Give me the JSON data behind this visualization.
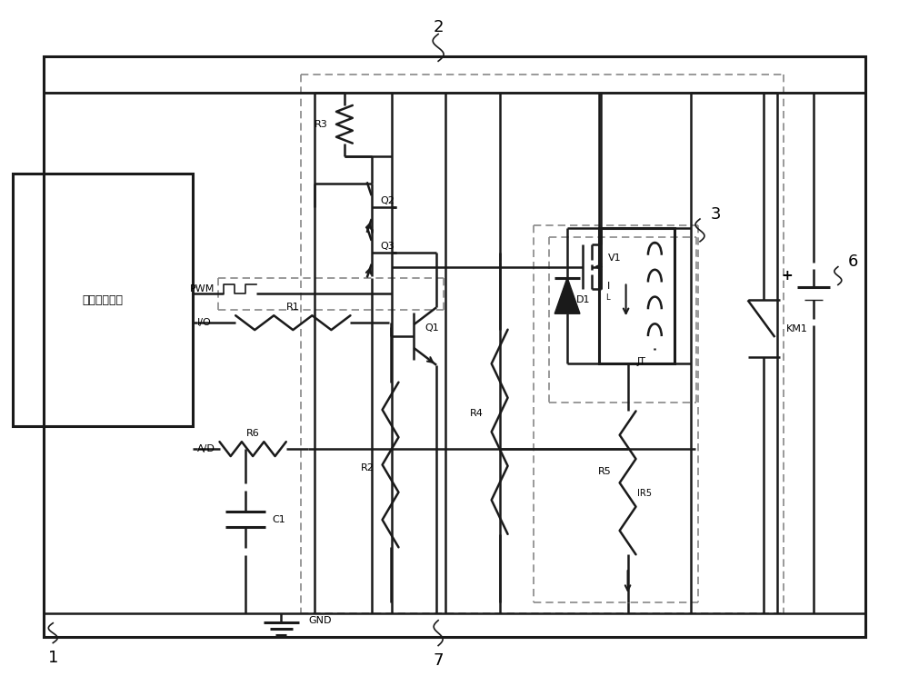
{
  "bg_color": "#ffffff",
  "line_color": "#1a1a1a",
  "dash_color": "#888888",
  "title": "",
  "module_text": "微处理器模块",
  "labels": {
    "R1": "R1",
    "R2": "R2",
    "R3": "R3",
    "R4": "R4",
    "R5": "R5",
    "R6": "R6",
    "C1": "C1",
    "GND": "GND",
    "Q1": "Q1",
    "Q2": "Q2",
    "Q3": "Q3",
    "V1": "V1",
    "D1": "D1",
    "IL": "IL",
    "IR5": "IR5",
    "JT": "JT",
    "KM1": "KM1",
    "PWM": "PWM",
    "IO": "I/O",
    "AD": "A/D",
    "num1": "1",
    "num2": "2",
    "num3": "3",
    "num6": "6",
    "num7": "7"
  }
}
